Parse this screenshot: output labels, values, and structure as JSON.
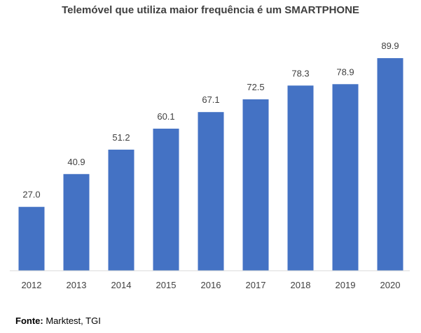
{
  "chart_data": {
    "type": "bar",
    "title": "Telemóvel que utiliza maior frequência é um SMARTPHONE",
    "categories": [
      "2012",
      "2013",
      "2014",
      "2015",
      "2016",
      "2017",
      "2018",
      "2019",
      "2020"
    ],
    "values": [
      27.0,
      40.9,
      51.2,
      60.1,
      67.1,
      72.5,
      78.3,
      78.9,
      89.9
    ],
    "data_labels": [
      "27.0",
      "40.9",
      "51.2",
      "60.1",
      "67.1",
      "72.5",
      "78.3",
      "78.9",
      "89.9"
    ],
    "xlabel": "",
    "ylabel": "",
    "ylim": [
      0,
      100
    ],
    "grid": false,
    "legend": "none",
    "bar_color": "#4472c4"
  },
  "source": {
    "label": "Fonte:",
    "text": " Marktest, TGI"
  }
}
